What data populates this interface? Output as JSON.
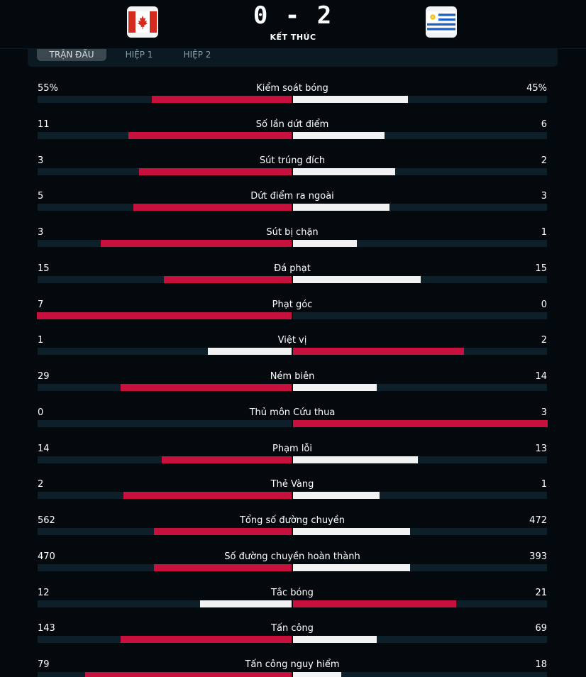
{
  "header": {
    "score": "0 - 2",
    "status": "KẾT THÚC",
    "home_flag_icon": "canada-flag-icon",
    "away_flag_icon": "uruguay-flag-icon"
  },
  "tabs": [
    {
      "label": "TRẬN ĐẤU",
      "active": true
    },
    {
      "label": "HIỆP 1",
      "active": false
    },
    {
      "label": "HIỆP 2",
      "active": false
    }
  ],
  "colors": {
    "home_bar": "#c8103e",
    "away_bar": "#f2f2f2",
    "track": "#0d1f28",
    "background": "#03090c"
  },
  "stats": [
    {
      "label": "Kiểm soát bóng",
      "home": "55%",
      "away": "45%",
      "home_share": 0.55,
      "away_share": 0.45,
      "leader": "home"
    },
    {
      "label": "Số lần dứt điểm",
      "home": "11",
      "away": "6",
      "home_share": 0.64,
      "away_share": 0.36,
      "leader": "home"
    },
    {
      "label": "Sút trúng đích",
      "home": "3",
      "away": "2",
      "home_share": 0.6,
      "away_share": 0.4,
      "leader": "home"
    },
    {
      "label": "Dứt điểm ra ngoài",
      "home": "5",
      "away": "3",
      "home_share": 0.62,
      "away_share": 0.38,
      "leader": "home"
    },
    {
      "label": "Sút bị chặn",
      "home": "3",
      "away": "1",
      "home_share": 0.75,
      "away_share": 0.25,
      "leader": "home"
    },
    {
      "label": "Đá phạt",
      "home": "15",
      "away": "15",
      "home_share": 0.5,
      "away_share": 0.5,
      "leader": "tie"
    },
    {
      "label": "Phạt góc",
      "home": "7",
      "away": "0",
      "home_share": 1.0,
      "away_share": 0.0,
      "leader": "home"
    },
    {
      "label": "Việt vị",
      "home": "1",
      "away": "2",
      "home_share": 0.33,
      "away_share": 0.67,
      "leader": "away"
    },
    {
      "label": "Ném biên",
      "home": "29",
      "away": "14",
      "home_share": 0.67,
      "away_share": 0.33,
      "leader": "home"
    },
    {
      "label": "Thủ môn Cứu thua",
      "home": "0",
      "away": "3",
      "home_share": 0.0,
      "away_share": 1.0,
      "leader": "away"
    },
    {
      "label": "Phạm lỗi",
      "home": "14",
      "away": "13",
      "home_share": 0.51,
      "away_share": 0.49,
      "leader": "home"
    },
    {
      "label": "Thẻ Vàng",
      "home": "2",
      "away": "1",
      "home_share": 0.66,
      "away_share": 0.34,
      "leader": "home"
    },
    {
      "label": "Tổng số đường chuyền",
      "home": "562",
      "away": "472",
      "home_share": 0.54,
      "away_share": 0.46,
      "leader": "home"
    },
    {
      "label": "Số đường chuyền hoàn thành",
      "home": "470",
      "away": "393",
      "home_share": 0.54,
      "away_share": 0.46,
      "leader": "home"
    },
    {
      "label": "Tắc bóng",
      "home": "12",
      "away": "21",
      "home_share": 0.36,
      "away_share": 0.64,
      "leader": "away"
    },
    {
      "label": "Tấn công",
      "home": "143",
      "away": "69",
      "home_share": 0.67,
      "away_share": 0.33,
      "leader": "home"
    },
    {
      "label": "Tấn công nguy hiểm",
      "home": "79",
      "away": "18",
      "home_share": 0.81,
      "away_share": 0.19,
      "leader": "home"
    }
  ]
}
